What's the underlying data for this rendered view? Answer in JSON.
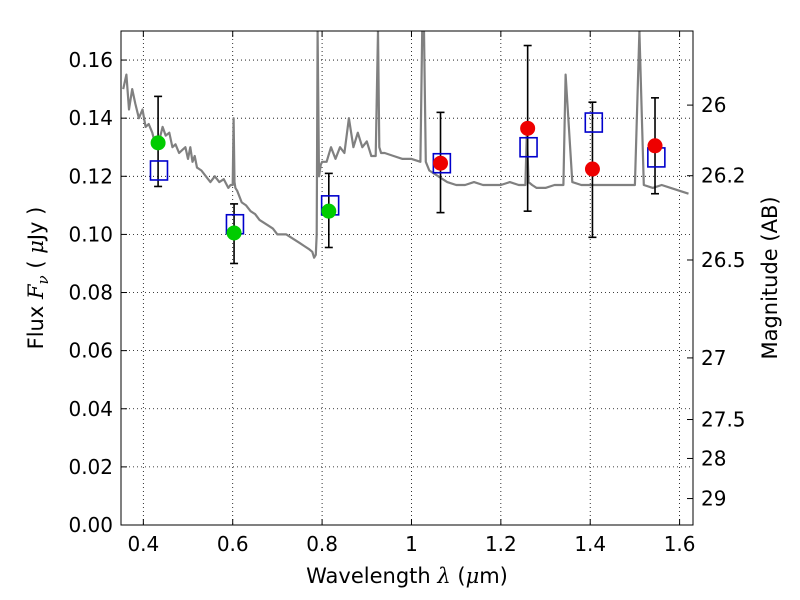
{
  "chart_data": {
    "type": "scatter",
    "xlabel": {
      "prefix": "Wavelength ",
      "symbol": "λ",
      "unit_open": " (",
      "unit_symbol": "μ",
      "unit_rest": "m)"
    },
    "ylabel": {
      "prefix": "Flux ",
      "symbol": "F",
      "subscript": "ν",
      "unit_open": " ( ",
      "unit_symbol": "μ",
      "unit_rest": "Jy )"
    },
    "y2label": "Magnitude (AB)",
    "xlim": [
      0.35,
      1.63
    ],
    "ylim": [
      0.0,
      0.17
    ],
    "xticks": [
      0.4,
      0.6,
      0.8,
      1.0,
      1.2,
      1.4,
      1.6
    ],
    "xtick_labels": [
      "0.4",
      "0.6",
      "0.8",
      "1",
      "1.2",
      "1.4",
      "1.6"
    ],
    "yticks": [
      0.0,
      0.02,
      0.04,
      0.06,
      0.08,
      0.1,
      0.12,
      0.14,
      0.16
    ],
    "ytick_labels": [
      "0.00",
      "0.02",
      "0.04",
      "0.06",
      "0.08",
      "0.10",
      "0.12",
      "0.14",
      "0.16"
    ],
    "y2ticks": [
      {
        "label": "26",
        "flux": 0.1445
      },
      {
        "label": "26.2",
        "flux": 0.1202
      },
      {
        "label": "26.5",
        "flux": 0.0912
      },
      {
        "label": "27",
        "flux": 0.0575
      },
      {
        "label": "27.5",
        "flux": 0.0363
      },
      {
        "label": "28",
        "flux": 0.0229
      },
      {
        "label": "29",
        "flux": 0.0091
      }
    ],
    "grid": true,
    "colors": {
      "model": "#808080",
      "green": "#00cc00",
      "red": "#ee0000",
      "box": "#0000cc",
      "error": "#000000"
    },
    "model_spectrum": {
      "x": [
        0.355,
        0.362,
        0.368,
        0.375,
        0.382,
        0.39,
        0.398,
        0.405,
        0.412,
        0.42,
        0.428,
        0.435,
        0.443,
        0.45,
        0.458,
        0.465,
        0.472,
        0.48,
        0.487,
        0.494,
        0.5,
        0.505,
        0.51,
        0.515,
        0.52,
        0.53,
        0.54,
        0.55,
        0.56,
        0.57,
        0.58,
        0.59,
        0.595,
        0.6,
        0.602,
        0.604,
        0.606,
        0.61,
        0.62,
        0.63,
        0.64,
        0.65,
        0.66,
        0.67,
        0.68,
        0.69,
        0.7,
        0.71,
        0.72,
        0.73,
        0.74,
        0.75,
        0.76,
        0.77,
        0.778,
        0.782,
        0.786,
        0.788,
        0.79,
        0.793,
        0.797,
        0.8,
        0.81,
        0.82,
        0.83,
        0.84,
        0.85,
        0.86,
        0.87,
        0.88,
        0.89,
        0.9,
        0.91,
        0.92,
        0.925,
        0.928,
        0.932,
        0.94,
        0.96,
        0.98,
        1.0,
        1.02,
        1.024,
        1.028,
        1.032,
        1.04,
        1.06,
        1.08,
        1.1,
        1.12,
        1.14,
        1.16,
        1.18,
        1.2,
        1.22,
        1.24,
        1.255,
        1.258,
        1.262,
        1.27,
        1.28,
        1.3,
        1.32,
        1.34,
        1.345,
        1.36,
        1.38,
        1.4,
        1.42,
        1.44,
        1.46,
        1.48,
        1.5,
        1.51,
        1.52,
        1.54,
        1.56,
        1.58,
        1.6,
        1.62
      ],
      "y": [
        0.15,
        0.155,
        0.143,
        0.15,
        0.145,
        0.14,
        0.143,
        0.137,
        0.138,
        0.135,
        0.13,
        0.132,
        0.137,
        0.134,
        0.135,
        0.13,
        0.131,
        0.128,
        0.129,
        0.13,
        0.126,
        0.13,
        0.125,
        0.127,
        0.123,
        0.122,
        0.12,
        0.118,
        0.12,
        0.118,
        0.119,
        0.116,
        0.117,
        0.117,
        0.14,
        0.118,
        0.116,
        0.115,
        0.111,
        0.11,
        0.108,
        0.107,
        0.105,
        0.104,
        0.103,
        0.102,
        0.1,
        0.1,
        0.1,
        0.099,
        0.098,
        0.097,
        0.096,
        0.095,
        0.094,
        0.092,
        0.093,
        0.1,
        0.17,
        0.12,
        0.124,
        0.125,
        0.125,
        0.13,
        0.126,
        0.13,
        0.128,
        0.14,
        0.13,
        0.135,
        0.13,
        0.132,
        0.127,
        0.127,
        0.17,
        0.13,
        0.128,
        0.128,
        0.127,
        0.126,
        0.126,
        0.125,
        0.17,
        0.17,
        0.125,
        0.122,
        0.12,
        0.118,
        0.117,
        0.117,
        0.118,
        0.117,
        0.117,
        0.117,
        0.118,
        0.117,
        0.117,
        0.135,
        0.118,
        0.117,
        0.116,
        0.116,
        0.117,
        0.117,
        0.155,
        0.118,
        0.117,
        0.117,
        0.117,
        0.117,
        0.117,
        0.117,
        0.117,
        0.17,
        0.117,
        0.116,
        0.117,
        0.116,
        0.115,
        0.114
      ]
    },
    "observed_green": {
      "x": [
        0.433,
        0.603,
        0.815
      ],
      "y": [
        0.1315,
        0.1005,
        0.108
      ],
      "yerr_low": [
        0.1165,
        0.09,
        0.0955
      ],
      "yerr_high": [
        0.1475,
        0.1105,
        0.121
      ]
    },
    "observed_red": {
      "x": [
        1.065,
        1.26,
        1.405,
        1.545
      ],
      "y": [
        0.1245,
        0.1365,
        0.1225,
        0.1305
      ],
      "yerr_low": [
        0.1075,
        0.108,
        0.099,
        0.114
      ],
      "yerr_high": [
        0.142,
        0.165,
        0.1455,
        0.147
      ]
    },
    "model_photometry": {
      "x": [
        0.435,
        0.605,
        0.818,
        1.068,
        1.262,
        1.408,
        1.548
      ],
      "y": [
        0.122,
        0.1035,
        0.11,
        0.1245,
        0.13,
        0.1385,
        0.1265
      ]
    }
  }
}
